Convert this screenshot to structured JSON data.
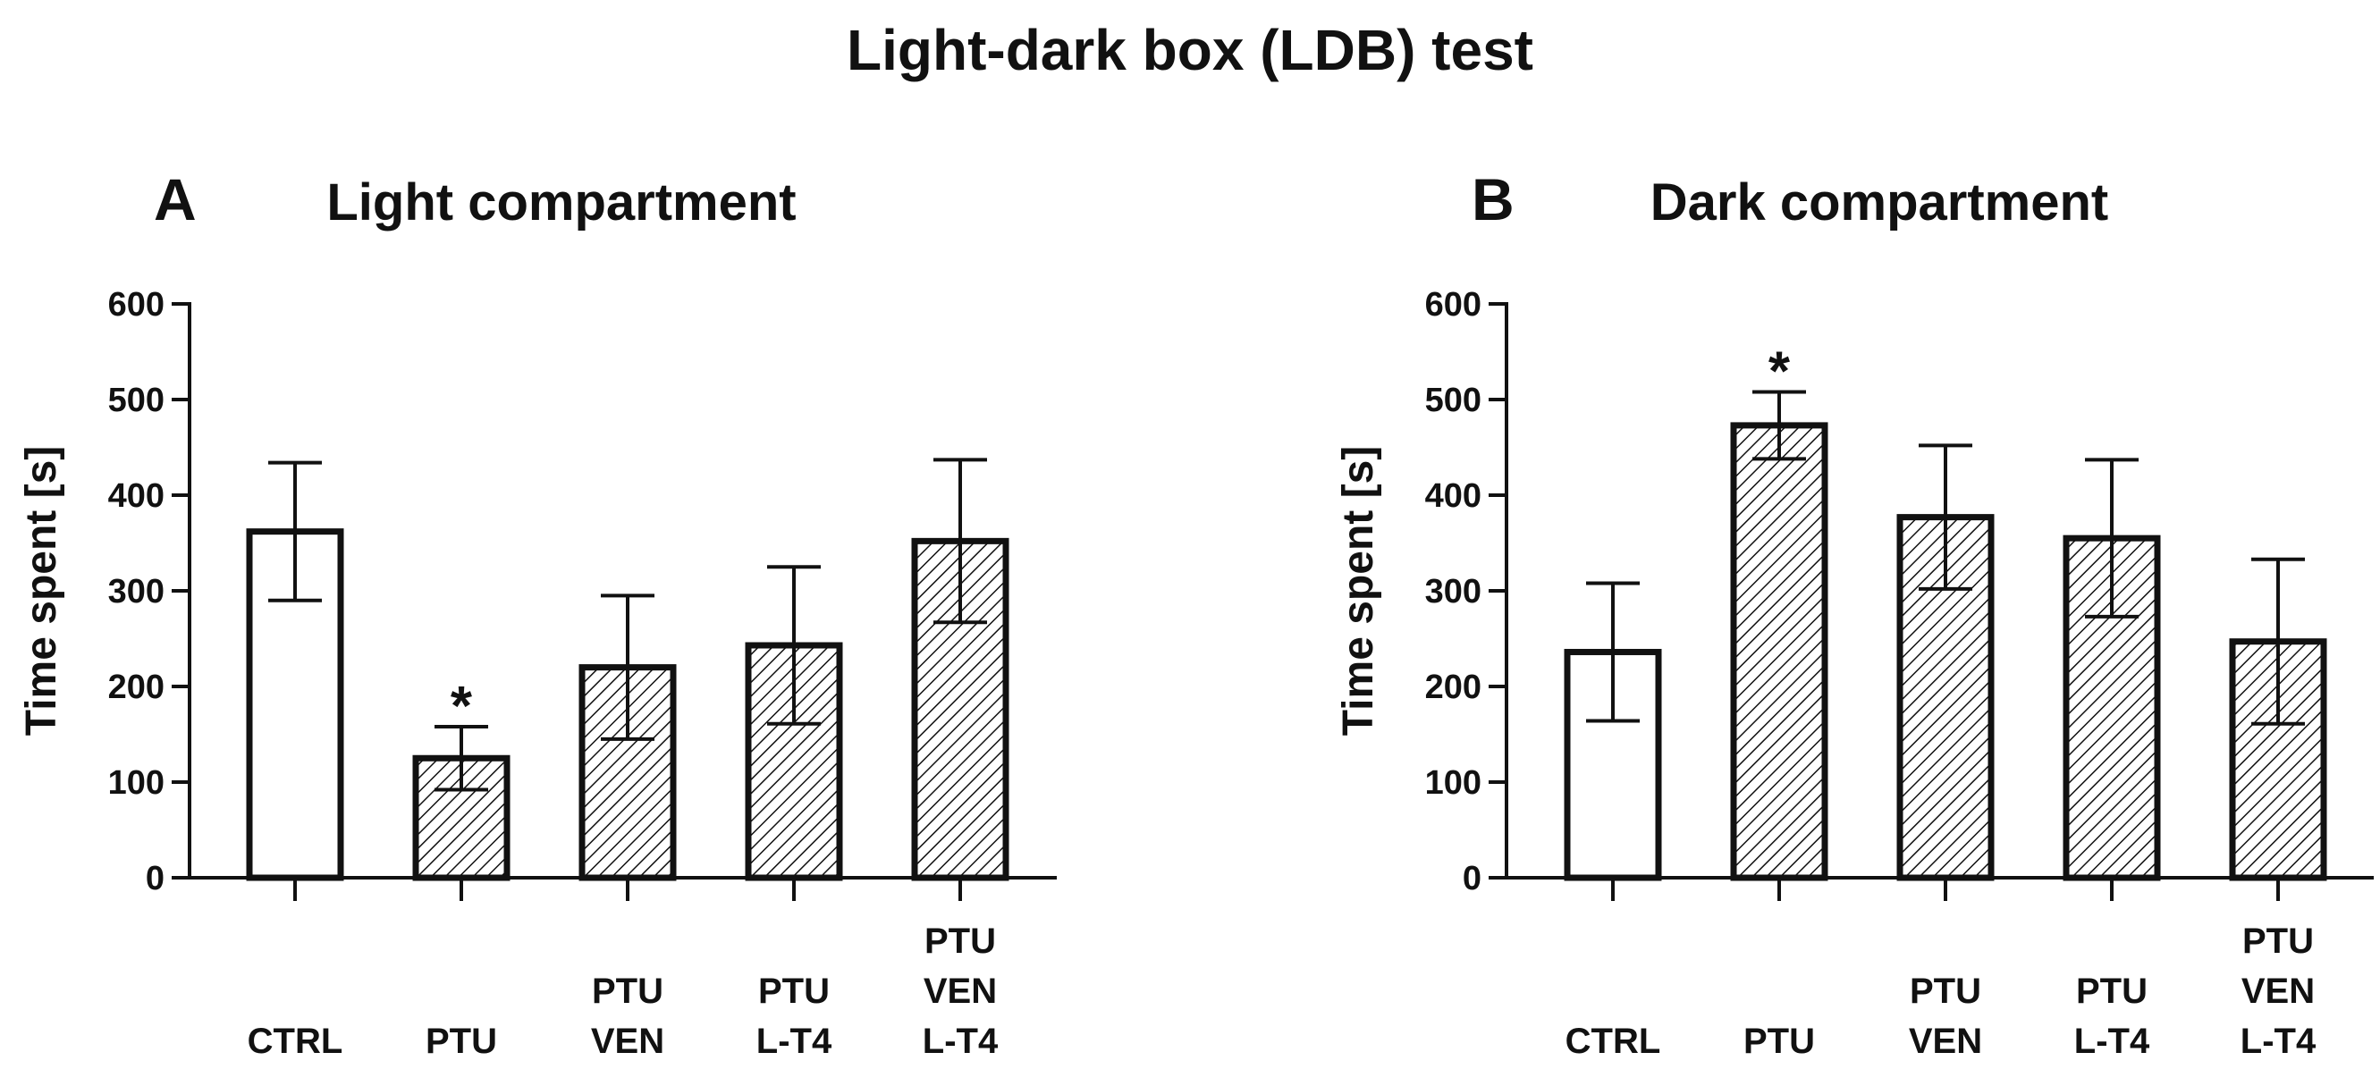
{
  "title": "Light-dark box (LDB) test",
  "chart_data": [
    {
      "type": "bar",
      "panel": "A",
      "title": "Light compartment",
      "ylabel": "Time spent [s]",
      "xlabel": "",
      "ylim": [
        0,
        600
      ],
      "yticks": [
        0,
        100,
        200,
        300,
        400,
        500,
        600
      ],
      "categories": [
        [
          "CTRL"
        ],
        [
          "PTU"
        ],
        [
          "PTU",
          "VEN"
        ],
        [
          "PTU",
          "L-T4"
        ],
        [
          "PTU",
          "VEN",
          "L-T4"
        ]
      ],
      "values": [
        362,
        125,
        220,
        243,
        352
      ],
      "errors": [
        72,
        33,
        75,
        82,
        85
      ],
      "hatched": [
        false,
        true,
        true,
        true,
        true
      ],
      "significance": [
        "",
        "*",
        "",
        "",
        ""
      ]
    },
    {
      "type": "bar",
      "panel": "B",
      "title": "Dark compartment",
      "ylabel": "Time spent [s]",
      "xlabel": "",
      "ylim": [
        0,
        600
      ],
      "yticks": [
        0,
        100,
        200,
        300,
        400,
        500,
        600
      ],
      "categories": [
        [
          "CTRL"
        ],
        [
          "PTU"
        ],
        [
          "PTU",
          "VEN"
        ],
        [
          "PTU",
          "L-T4"
        ],
        [
          "PTU",
          "VEN",
          "L-T4"
        ]
      ],
      "values": [
        236,
        473,
        377,
        355,
        247
      ],
      "errors": [
        72,
        35,
        75,
        82,
        86
      ],
      "hatched": [
        false,
        true,
        true,
        true,
        true
      ],
      "significance": [
        "",
        "*",
        "",
        "",
        ""
      ]
    }
  ],
  "colors": {
    "ink": "#111111",
    "background": "#ffffff"
  }
}
